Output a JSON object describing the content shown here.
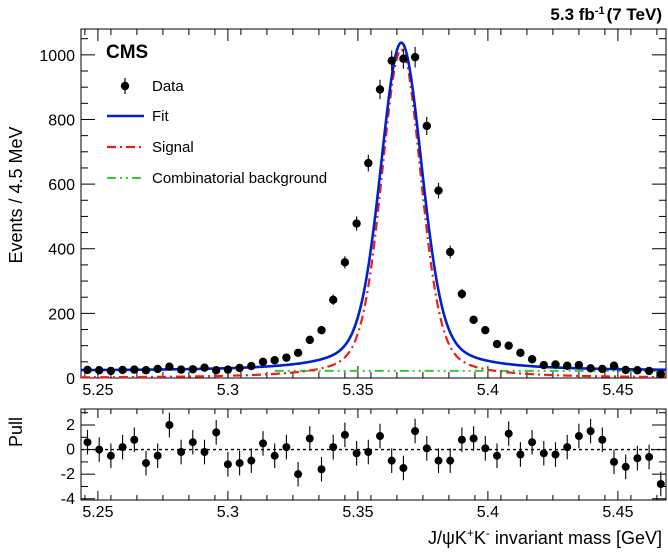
{
  "chart_data": [
    {
      "type": "scatter",
      "panel": "main",
      "experiment_label": "CMS",
      "luminosity_label": "5.3 fb",
      "luminosity_exp": "-1",
      "energy_label": "(7 TeV)",
      "ylabel": "Events / 4.5 MeV",
      "xlim": [
        5.2435,
        5.4685
      ],
      "ylim": [
        0,
        1080
      ],
      "xticks": [
        5.25,
        5.3,
        5.35,
        5.4,
        5.45
      ],
      "xtick_labels": [
        "5.25",
        "5.3",
        "5.35",
        "5.4",
        "5.45"
      ],
      "yticks": [
        0,
        200,
        400,
        600,
        800,
        1000
      ],
      "ytick_labels": [
        "0",
        "200",
        "400",
        "600",
        "800",
        "1000"
      ],
      "legend_position": "top-left",
      "legend": [
        {
          "key": "data",
          "label": "Data",
          "style": "marker",
          "color": "#000000"
        },
        {
          "key": "fit",
          "label": "Fit",
          "style": "solid",
          "color": "#0022cc"
        },
        {
          "key": "signal",
          "label": "Signal",
          "style": "dashdot",
          "color": "#ee1c1c"
        },
        {
          "key": "bkg",
          "label": "Combinatorial background",
          "style": "dashdotdot",
          "color": "#33cc33"
        }
      ],
      "series": [
        {
          "key": "data",
          "name": "Data",
          "x": [
            5.246,
            5.2505,
            5.255,
            5.2595,
            5.264,
            5.2685,
            5.273,
            5.2775,
            5.282,
            5.2865,
            5.291,
            5.2955,
            5.3,
            5.3045,
            5.309,
            5.3135,
            5.318,
            5.3225,
            5.327,
            5.3315,
            5.336,
            5.3405,
            5.345,
            5.3495,
            5.354,
            5.3585,
            5.363,
            5.3675,
            5.372,
            5.3765,
            5.381,
            5.3855,
            5.39,
            5.3945,
            5.399,
            5.4035,
            5.408,
            5.4125,
            5.417,
            5.4215,
            5.426,
            5.4305,
            5.435,
            5.4395,
            5.444,
            5.4485,
            5.453,
            5.4575,
            5.462,
            5.4665
          ],
          "y": [
            25,
            24,
            22,
            25,
            26,
            24,
            28,
            35,
            26,
            27,
            32,
            24,
            26,
            31,
            37,
            50,
            55,
            63,
            78,
            118,
            148,
            242,
            358,
            478,
            665,
            893,
            982,
            988,
            993,
            780,
            580,
            390,
            260,
            180,
            148,
            105,
            100,
            78,
            58,
            40,
            42,
            38,
            40,
            30,
            28,
            38,
            25,
            24,
            22,
            12
          ],
          "yerr": [
            5,
            5,
            5,
            5,
            5,
            5,
            5,
            6,
            5,
            5,
            6,
            5,
            5,
            6,
            6,
            7,
            7,
            8,
            9,
            11,
            12,
            16,
            19,
            22,
            26,
            30,
            31,
            31,
            32,
            28,
            24,
            20,
            16,
            13,
            12,
            10,
            10,
            9,
            8,
            6,
            6,
            6,
            6,
            5,
            5,
            6,
            5,
            5,
            5,
            3
          ]
        },
        {
          "key": "fit",
          "name": "Fit",
          "peak_x": 5.3667,
          "peak_y": 1038,
          "baseline_y": 22
        },
        {
          "key": "signal",
          "name": "Signal",
          "peak_x": 5.3667,
          "peak_y": 1016
        },
        {
          "key": "bkg",
          "name": "Combinatorial background",
          "level_y": 22
        }
      ]
    },
    {
      "type": "scatter",
      "panel": "pull",
      "ylabel": "Pull",
      "xlabel_pre": "J/ψK",
      "xlabel_sup1": "+",
      "xlabel_mid": "K",
      "xlabel_sup2": "-",
      "xlabel_post": " invariant mass [GeV]",
      "xlim": [
        5.2435,
        5.4685
      ],
      "ylim": [
        -4.1,
        3.3
      ],
      "xticks": [
        5.25,
        5.3,
        5.35,
        5.4,
        5.45
      ],
      "xtick_labels": [
        "5.25",
        "5.3",
        "5.35",
        "5.4",
        "5.45"
      ],
      "yticks": [
        -4,
        -2,
        0,
        2
      ],
      "ytick_labels": [
        "-4",
        "-2",
        "0",
        "2"
      ],
      "reference_line_y": 0,
      "x": [
        5.246,
        5.2505,
        5.255,
        5.2595,
        5.264,
        5.2685,
        5.273,
        5.2775,
        5.282,
        5.2865,
        5.291,
        5.2955,
        5.3,
        5.3045,
        5.309,
        5.3135,
        5.318,
        5.3225,
        5.327,
        5.3315,
        5.336,
        5.3405,
        5.345,
        5.3495,
        5.354,
        5.3585,
        5.363,
        5.3675,
        5.372,
        5.3765,
        5.381,
        5.3855,
        5.39,
        5.3945,
        5.399,
        5.4035,
        5.408,
        5.4125,
        5.417,
        5.4215,
        5.426,
        5.4305,
        5.435,
        5.4395,
        5.444,
        5.4485,
        5.453,
        5.4575,
        5.462,
        5.4665
      ],
      "y": [
        0.6,
        0.0,
        -0.5,
        0.2,
        0.8,
        -1.1,
        -0.5,
        2.0,
        -0.2,
        0.6,
        -0.2,
        1.4,
        -1.2,
        -1.1,
        -0.9,
        0.5,
        -0.5,
        0.2,
        -2.0,
        0.9,
        -1.6,
        0.2,
        1.2,
        -0.3,
        -0.2,
        1.1,
        -0.9,
        -1.5,
        1.5,
        0.1,
        -0.9,
        -0.9,
        0.8,
        0.9,
        0.1,
        -0.5,
        1.3,
        -0.4,
        0.6,
        -0.3,
        -0.4,
        0.2,
        1.1,
        1.5,
        0.8,
        -1.0,
        -1.4,
        -0.7,
        -0.6,
        -2.8
      ],
      "yerr": [
        1,
        1,
        1,
        1,
        1,
        1,
        1,
        1,
        1,
        1,
        1,
        1,
        1,
        1,
        1,
        1,
        1,
        1,
        1,
        1,
        1,
        1,
        1,
        1,
        1,
        1,
        1,
        1,
        1,
        1,
        1,
        1,
        1,
        1,
        1,
        1,
        1,
        1,
        1,
        1,
        1,
        1,
        1,
        1,
        1,
        1,
        1,
        1,
        1,
        1
      ]
    }
  ]
}
